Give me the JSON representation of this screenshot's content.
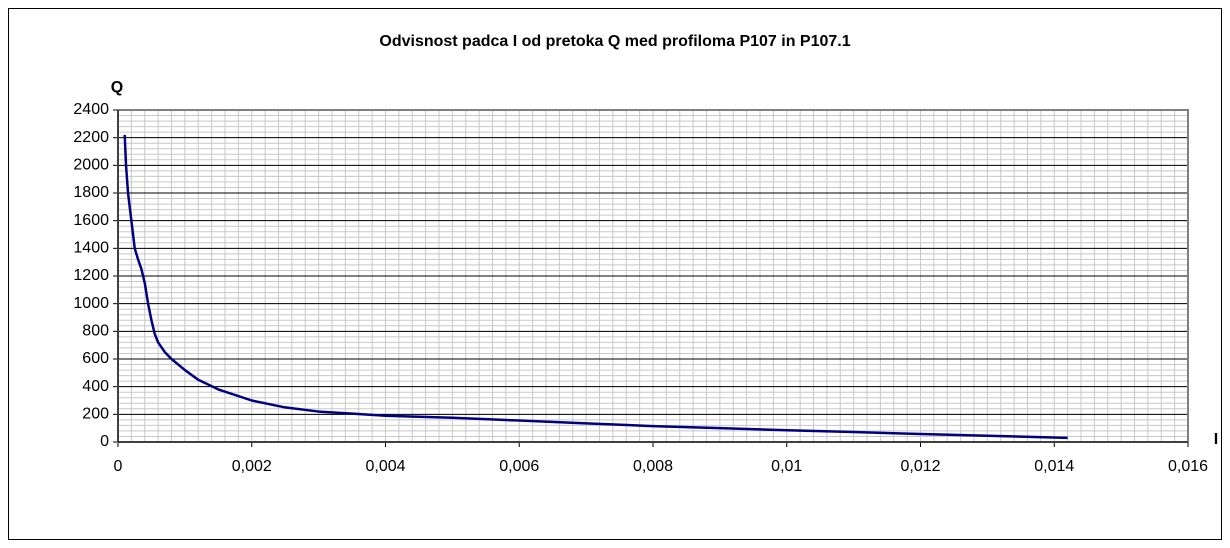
{
  "chart_data": {
    "type": "line",
    "title": "Odvisnost padca I od pretoka Q med profiloma P107 in P107.1",
    "x_label": "I",
    "y_label": "Q",
    "x": [
      0.0001,
      0.00012,
      0.00015,
      0.0002,
      0.00025,
      0.0003,
      0.00035,
      0.0004,
      0.00045,
      0.0005,
      0.00055,
      0.0006,
      0.0007,
      0.0008,
      0.001,
      0.0012,
      0.0015,
      0.002,
      0.0025,
      0.003,
      0.0035,
      0.004,
      0.005,
      0.006,
      0.007,
      0.008,
      0.009,
      0.01,
      0.011,
      0.012,
      0.013,
      0.0142
    ],
    "series": [
      {
        "color": "#000080",
        "values": [
          2220,
          2000,
          1800,
          1600,
          1400,
          1320,
          1250,
          1150,
          1000,
          880,
          780,
          720,
          650,
          600,
          520,
          450,
          380,
          300,
          250,
          220,
          205,
          190,
          175,
          155,
          135,
          115,
          100,
          85,
          72,
          58,
          45,
          30
        ]
      }
    ],
    "xlim": [
      0,
      0.016
    ],
    "xticks": [
      0,
      {
        "value": 0.002,
        "label": "0,002"
      },
      {
        "value": 0.004,
        "label": "0,004"
      },
      {
        "value": 0.006,
        "label": "0,006"
      },
      {
        "value": 0.008,
        "label": "0,008"
      },
      {
        "value": 0.01,
        "label": "0,01"
      },
      {
        "value": 0.012,
        "label": "0,012"
      },
      {
        "value": 0.014,
        "label": "0,014"
      },
      {
        "value": 0.016,
        "label": "0,016"
      }
    ],
    "ylim": [
      0,
      2400
    ],
    "yticks": [
      0,
      200,
      400,
      600,
      800,
      1000,
      1200,
      1400,
      1600,
      1800,
      2000,
      2200,
      2400
    ],
    "grid": true,
    "minor_grid": {
      "x": 0.0002,
      "y": 40
    }
  }
}
